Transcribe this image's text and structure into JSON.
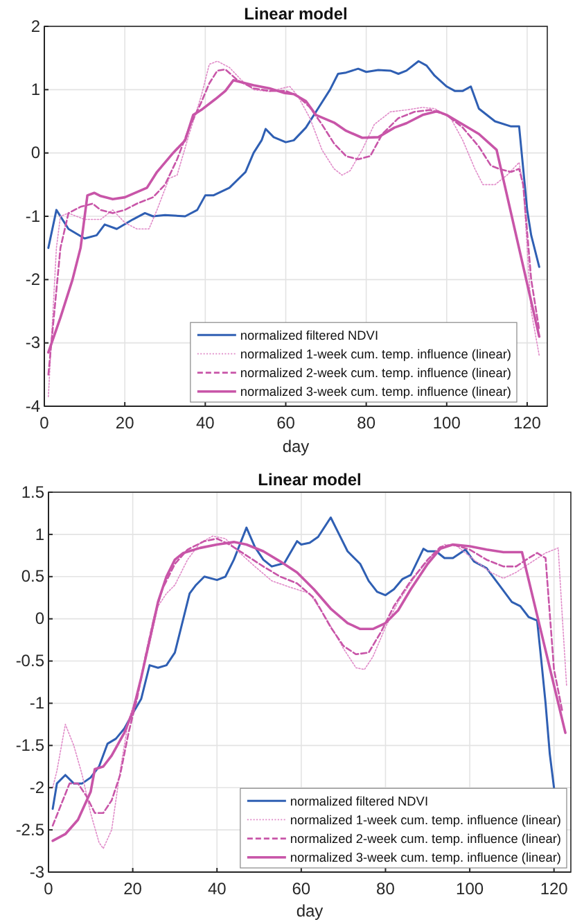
{
  "chart_data": [
    {
      "type": "line",
      "title": "Linear model",
      "xlabel": "day",
      "xlim": [
        0,
        125
      ],
      "xticks": [
        0,
        20,
        40,
        60,
        80,
        100,
        120
      ],
      "ylim": [
        -4,
        2
      ],
      "yticks": [
        -4,
        -3,
        -2,
        -1,
        0,
        1,
        2
      ],
      "grid": true,
      "legend": "bottom right",
      "series": [
        {
          "name": "normalized filtered NDVI",
          "color": "#2f5fb3",
          "line_style": "solid",
          "x": [
            1,
            3,
            6,
            10,
            13,
            15,
            18,
            22,
            25,
            27,
            30,
            35,
            38,
            40,
            42,
            46,
            50,
            52,
            54,
            55,
            57,
            60,
            62,
            65,
            68,
            71,
            73,
            75,
            78,
            80,
            83,
            86,
            88,
            90,
            93,
            95,
            97,
            100,
            102,
            104,
            106,
            108,
            112,
            116,
            118,
            120,
            121,
            123
          ],
          "values": [
            -1.5,
            -0.9,
            -1.2,
            -1.35,
            -1.3,
            -1.13,
            -1.2,
            -1.05,
            -0.95,
            -1.0,
            -0.98,
            -1.0,
            -0.9,
            -0.67,
            -0.67,
            -0.55,
            -0.3,
            0.0,
            0.2,
            0.38,
            0.25,
            0.17,
            0.2,
            0.4,
            0.7,
            1.0,
            1.25,
            1.27,
            1.33,
            1.28,
            1.31,
            1.3,
            1.25,
            1.3,
            1.45,
            1.38,
            1.22,
            1.05,
            0.98,
            0.98,
            1.05,
            0.7,
            0.5,
            0.42,
            0.42,
            -0.9,
            -1.3,
            -1.8
          ]
        },
        {
          "name": "normalized 1-week cum. temp. influence (linear)",
          "color": "#e08ac8",
          "line_style": "dotted",
          "x": [
            1,
            3,
            4,
            6,
            8,
            10,
            14,
            17,
            20,
            23,
            26,
            28,
            31,
            33,
            36,
            39,
            41,
            43,
            46,
            49,
            52,
            56,
            59,
            61,
            63,
            66,
            69,
            72,
            74,
            76,
            79,
            82,
            86,
            90,
            94,
            97,
            101,
            104,
            107,
            109,
            112,
            115,
            118,
            119,
            121,
            123
          ],
          "values": [
            -3.85,
            -1.5,
            -1.0,
            -0.95,
            -1.0,
            -1.05,
            -1.05,
            -0.9,
            -1.1,
            -1.2,
            -1.2,
            -0.9,
            -0.4,
            -0.35,
            0.3,
            0.9,
            1.4,
            1.45,
            1.35,
            1.15,
            1.0,
            0.97,
            1.02,
            1.05,
            0.9,
            0.55,
            0.05,
            -0.25,
            -0.35,
            -0.28,
            0.05,
            0.45,
            0.65,
            0.68,
            0.72,
            0.7,
            0.55,
            0.2,
            -0.25,
            -0.5,
            -0.5,
            -0.35,
            -0.15,
            -0.5,
            -2.5,
            -3.2
          ]
        },
        {
          "name": "normalized 2-week cum. temp. influence (linear)",
          "color": "#c855a8",
          "line_style": "dashed",
          "x": [
            1,
            4,
            6,
            9,
            12,
            14,
            17,
            20,
            23,
            27,
            30,
            33,
            36,
            39,
            41,
            43,
            45,
            48,
            52,
            56,
            60,
            63,
            66,
            69,
            72,
            75,
            78,
            81,
            84,
            88,
            92,
            96,
            100,
            104,
            108,
            111,
            113,
            116,
            118,
            119,
            121,
            123
          ],
          "values": [
            -3.5,
            -1.5,
            -0.95,
            -0.85,
            -0.8,
            -0.9,
            -0.95,
            -0.9,
            -0.8,
            -0.7,
            -0.5,
            -0.1,
            0.4,
            0.8,
            1.1,
            1.3,
            1.32,
            1.15,
            1.02,
            0.98,
            0.98,
            0.9,
            0.72,
            0.45,
            0.15,
            -0.05,
            -0.1,
            -0.05,
            0.3,
            0.55,
            0.65,
            0.68,
            0.6,
            0.4,
            0.1,
            -0.2,
            -0.25,
            -0.3,
            -0.25,
            -0.5,
            -2.0,
            -2.8
          ]
        },
        {
          "name": "normalized 3-week cum. temp. influence (linear)",
          "color": "#c855a8",
          "line_style": "solid",
          "x": [
            1,
            4,
            7,
            9,
            10.7,
            12.4,
            14,
            17,
            20,
            25.5,
            28,
            32,
            35,
            37,
            39,
            42.5,
            45,
            47,
            52,
            56,
            59.5,
            62,
            65,
            67.5,
            72,
            75,
            79,
            83,
            87,
            90,
            94,
            97.6,
            100,
            104,
            108,
            112.4,
            123
          ],
          "values": [
            -3.15,
            -2.6,
            -2.0,
            -1.5,
            -0.67,
            -0.63,
            -0.68,
            -0.73,
            -0.7,
            -0.55,
            -0.3,
            0.0,
            0.2,
            0.6,
            0.68,
            0.85,
            0.98,
            1.15,
            1.07,
            1.02,
            0.95,
            0.93,
            0.82,
            0.6,
            0.48,
            0.35,
            0.24,
            0.25,
            0.4,
            0.47,
            0.6,
            0.66,
            0.6,
            0.45,
            0.3,
            0.05,
            -2.9
          ]
        }
      ]
    },
    {
      "type": "line",
      "title": "Linear model",
      "xlabel": "day",
      "xlim": [
        0,
        124
      ],
      "xticks": [
        0,
        20,
        40,
        60,
        80,
        100,
        120
      ],
      "ylim": [
        -3,
        1.5
      ],
      "yticks": [
        -3,
        -2.5,
        -2,
        -1.5,
        -1,
        -0.5,
        0,
        0.5,
        1,
        1.5
      ],
      "grid": true,
      "legend": "bottom right",
      "series": [
        {
          "name": "normalized filtered NDVI",
          "color": "#2f5fb3",
          "line_style": "solid",
          "x": [
            1,
            2,
            4,
            6,
            8,
            10,
            12,
            14,
            16,
            18,
            20,
            22,
            24,
            26,
            28,
            30,
            31.5,
            33.5,
            35,
            37,
            40,
            42,
            44,
            47,
            49,
            51,
            53,
            56,
            59,
            60,
            62,
            64,
            67,
            69,
            71,
            74,
            76,
            78,
            80,
            82,
            84,
            86,
            89,
            90,
            92,
            94,
            96,
            99,
            101,
            104,
            107,
            110,
            112,
            114,
            116,
            117,
            118,
            119,
            120
          ],
          "values": [
            -2.25,
            -1.95,
            -1.85,
            -1.95,
            -1.95,
            -1.88,
            -1.75,
            -1.48,
            -1.42,
            -1.3,
            -1.12,
            -0.95,
            -0.55,
            -0.58,
            -0.55,
            -0.4,
            -0.1,
            0.3,
            0.4,
            0.5,
            0.46,
            0.5,
            0.7,
            1.08,
            0.85,
            0.7,
            0.62,
            0.66,
            0.92,
            0.88,
            0.9,
            0.97,
            1.2,
            1.0,
            0.8,
            0.65,
            0.45,
            0.32,
            0.28,
            0.35,
            0.47,
            0.52,
            0.83,
            0.8,
            0.8,
            0.72,
            0.72,
            0.82,
            0.68,
            0.6,
            0.4,
            0.2,
            0.15,
            0.02,
            -0.02,
            -0.5,
            -1.0,
            -1.6,
            -2.0
          ]
        },
        {
          "name": "normalized 1-week cum. temp. influence (linear)",
          "color": "#e08ac8",
          "line_style": "dotted",
          "x": [
            1,
            2,
            4,
            6,
            8,
            10,
            12,
            13,
            15,
            17,
            19,
            21,
            24,
            26,
            28,
            30,
            33,
            36,
            39,
            42,
            45,
            49,
            53,
            57,
            62,
            66,
            70,
            73,
            75,
            77,
            80,
            83,
            87,
            91,
            94,
            97,
            101,
            105,
            108,
            111,
            114,
            118,
            120,
            121,
            122,
            123
          ],
          "values": [
            -2.0,
            -1.8,
            -1.25,
            -1.5,
            -1.85,
            -2.3,
            -2.65,
            -2.72,
            -2.5,
            -1.8,
            -1.2,
            -0.9,
            -0.3,
            0.15,
            0.3,
            0.4,
            0.7,
            0.9,
            0.98,
            0.95,
            0.8,
            0.62,
            0.45,
            0.38,
            0.3,
            0.0,
            -0.35,
            -0.58,
            -0.6,
            -0.45,
            -0.1,
            0.2,
            0.5,
            0.75,
            0.88,
            0.86,
            0.7,
            0.55,
            0.48,
            0.55,
            0.65,
            0.78,
            0.82,
            0.84,
            0.0,
            -0.8
          ]
        },
        {
          "name": "normalized 2-week cum. temp. influence (linear)",
          "color": "#c855a8",
          "line_style": "dashed",
          "x": [
            1,
            3,
            5,
            7,
            9,
            11,
            13,
            15,
            17,
            19,
            21,
            23,
            25,
            27,
            30,
            33,
            37,
            40,
            43,
            47,
            51,
            55,
            59,
            63,
            67,
            70,
            73,
            76,
            79,
            82,
            86,
            90,
            93,
            96,
            100,
            104,
            108,
            111,
            114,
            116,
            118,
            120,
            122
          ],
          "values": [
            -2.45,
            -2.2,
            -1.95,
            -1.95,
            -2.1,
            -2.3,
            -2.3,
            -2.15,
            -1.85,
            -1.35,
            -0.95,
            -0.45,
            0.0,
            0.35,
            0.65,
            0.82,
            0.92,
            0.95,
            0.88,
            0.75,
            0.62,
            0.5,
            0.42,
            0.25,
            -0.1,
            -0.32,
            -0.42,
            -0.4,
            -0.15,
            0.15,
            0.45,
            0.7,
            0.85,
            0.88,
            0.82,
            0.7,
            0.62,
            0.62,
            0.72,
            0.78,
            0.72,
            -0.6,
            -1.1
          ]
        },
        {
          "name": "normalized 3-week cum. temp. influence (linear)",
          "color": "#c855a8",
          "line_style": "solid",
          "x": [
            1,
            4,
            7,
            10,
            11,
            13,
            15,
            18,
            20,
            22,
            24,
            26,
            28,
            30,
            32,
            36,
            40,
            44,
            47,
            51,
            55,
            59,
            63,
            67,
            71,
            74,
            77,
            80,
            83,
            86,
            90,
            93,
            96,
            100,
            104,
            108,
            112.4,
            122.7
          ],
          "values": [
            -2.63,
            -2.55,
            -2.38,
            -2.05,
            -1.78,
            -1.75,
            -1.62,
            -1.35,
            -1.1,
            -0.7,
            -0.25,
            0.2,
            0.5,
            0.7,
            0.78,
            0.84,
            0.88,
            0.91,
            0.88,
            0.8,
            0.68,
            0.55,
            0.35,
            0.12,
            -0.05,
            -0.12,
            -0.12,
            -0.05,
            0.1,
            0.35,
            0.65,
            0.83,
            0.88,
            0.86,
            0.82,
            0.79,
            0.79,
            -1.35
          ]
        }
      ]
    }
  ]
}
